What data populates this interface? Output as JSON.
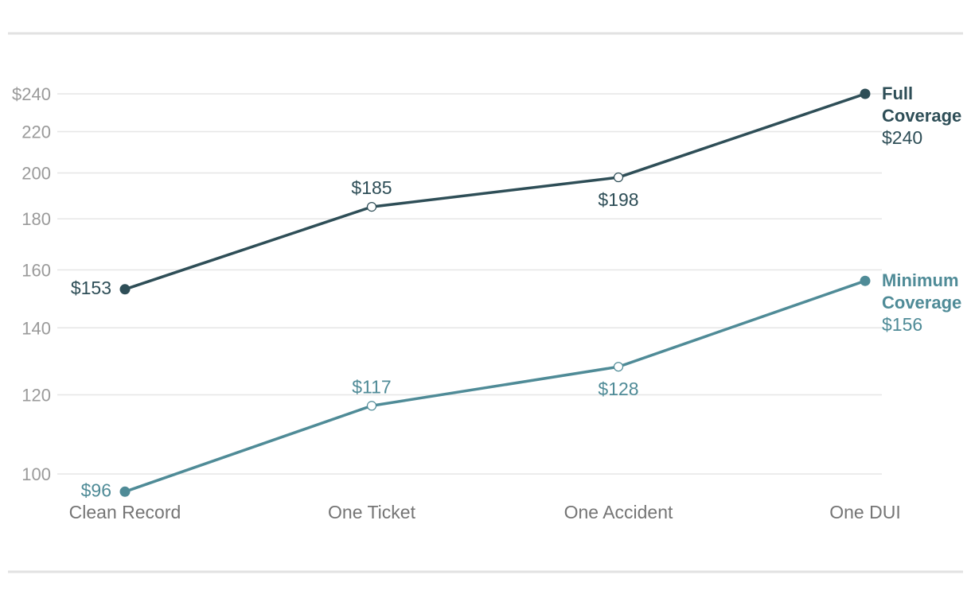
{
  "chart_data": {
    "type": "line",
    "categories": [
      "Clean Record",
      "One Ticket",
      "One Accident",
      "One DUI"
    ],
    "y_scale": "log",
    "ylim": [
      93,
      240
    ],
    "y_ticks": [
      {
        "value": 100,
        "label": "100"
      },
      {
        "value": 120,
        "label": "120"
      },
      {
        "value": 140,
        "label": "140"
      },
      {
        "value": 160,
        "label": "160"
      },
      {
        "value": 180,
        "label": "180"
      },
      {
        "value": 200,
        "label": "200"
      },
      {
        "value": 220,
        "label": "220"
      },
      {
        "value": 240,
        "label": "$240"
      }
    ],
    "grid": true,
    "legend": "inline-right",
    "series": [
      {
        "name_lines": [
          "Full",
          "Coverage"
        ],
        "end_label": "$240",
        "color": "#2e4e57",
        "values": [
          153,
          185,
          198,
          240
        ],
        "labels": [
          "$153",
          "$185",
          "$198",
          "$240"
        ]
      },
      {
        "name_lines": [
          "Minimum",
          "Coverage"
        ],
        "end_label": "$156",
        "color": "#4f8b97",
        "values": [
          96,
          117,
          128,
          156
        ],
        "labels": [
          "$96",
          "$117",
          "$128",
          "$156"
        ]
      }
    ]
  },
  "colors": {
    "rule": "#e2e2e2",
    "grid": "#e6e6e6",
    "tick_text": "#9a9a9a",
    "category_text": "#757575"
  }
}
